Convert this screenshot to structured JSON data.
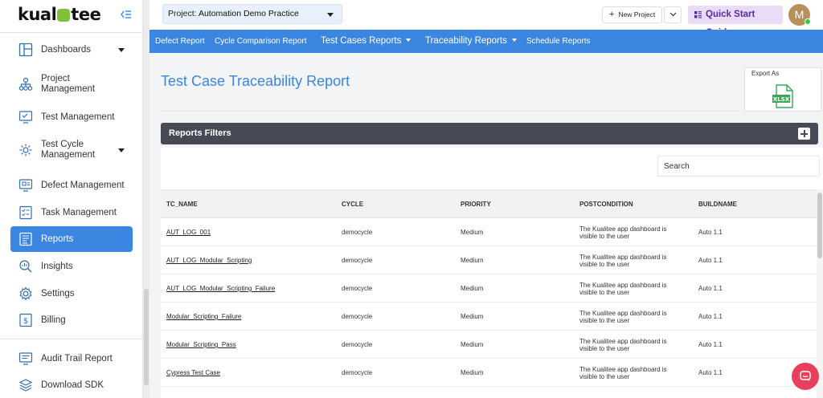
{
  "sidebar": {
    "logo_text_a": "kual",
    "logo_text_b": "tee",
    "items": [
      {
        "label": "Dashboards",
        "icon": "dashboard-icon",
        "has_caret": true
      },
      {
        "label": "Project Management",
        "icon": "project-tree-icon"
      },
      {
        "label": "Test Management",
        "icon": "test-monitor-icon"
      },
      {
        "label": "Test Cycle Management",
        "icon": "cycle-gear-icon",
        "has_caret": true
      },
      {
        "label": "Defect Management",
        "icon": "defect-monitor-icon"
      },
      {
        "label": "Task Management",
        "icon": "task-list-icon"
      },
      {
        "label": "Reports",
        "icon": "reports-icon",
        "active": true
      },
      {
        "label": "Insights",
        "icon": "insights-magnifier-icon"
      },
      {
        "label": "Settings",
        "icon": "settings-gear-icon"
      },
      {
        "label": "Billing",
        "icon": "billing-dollar-icon"
      },
      {
        "label": "Audit Trail Report",
        "icon": "audit-trail-icon"
      },
      {
        "label": "Download SDK",
        "icon": "layers-icon"
      }
    ]
  },
  "topbar": {
    "project_prefix": "Project:",
    "project_value": "Automation Demo Practice",
    "new_project_label": "New Project",
    "quick_start_label": "Quick Start Guide",
    "avatar_letter": "M"
  },
  "report_nav": {
    "items": [
      {
        "label": "Defect Report"
      },
      {
        "label": "Cycle Comparison Report"
      },
      {
        "label": "Test Cases Reports",
        "dropdown": true
      },
      {
        "label": "Traceability Reports",
        "dropdown": true
      },
      {
        "label": "Schedule Reports"
      }
    ]
  },
  "main": {
    "title": "Test Case Traceability Report",
    "export_label": "Export As",
    "export_format": "XLSX",
    "filters_title": "Reports Filters",
    "search_placeholder": "Search"
  },
  "table": {
    "columns": [
      "TC_NAME",
      "CYCLE",
      "PRIORITY",
      "POSTCONDITION",
      "BUILDNAME"
    ],
    "rows": [
      {
        "tc_name": "AUT_LOG_001",
        "cycle": "democycle",
        "priority": "Medium",
        "postcondition": "The Kualitee app dashboard is visible to the user",
        "buildname": "Auto 1.1"
      },
      {
        "tc_name": "AUT_LOG_Modular_Scripting",
        "cycle": "democycle",
        "priority": "Medium",
        "postcondition": "The Kualitee app dashboard is visible to the user",
        "buildname": "Auto 1.1"
      },
      {
        "tc_name": "AUT_LOG_Modular_Scripting_Failure",
        "cycle": "democycle",
        "priority": "Medium",
        "postcondition": "The Kualitee app dashboard is visible to the user",
        "buildname": "Auto 1.1"
      },
      {
        "tc_name": "Modular_Scripting_Failure",
        "cycle": "democycle",
        "priority": "Medium",
        "postcondition": "The Kualitee app dashboard is visible to the user",
        "buildname": "Auto 1.1"
      },
      {
        "tc_name": "Modular_Scripting_Pass",
        "cycle": "democycle",
        "priority": "Medium",
        "postcondition": "The Kualitee app dashboard is visible to the user",
        "buildname": "Auto 1.1"
      },
      {
        "tc_name": "Cypress Test Case",
        "cycle": "democycle",
        "priority": "Medium",
        "postcondition": "The Kualitee app dashboard is visible to the user",
        "buildname": "Auto 1.1"
      }
    ]
  },
  "colors": {
    "accent": "#3b86e0",
    "filters_bar": "#474a55",
    "quick_start_bg": "#e8dcf7",
    "chat_button": "#e8405c"
  }
}
